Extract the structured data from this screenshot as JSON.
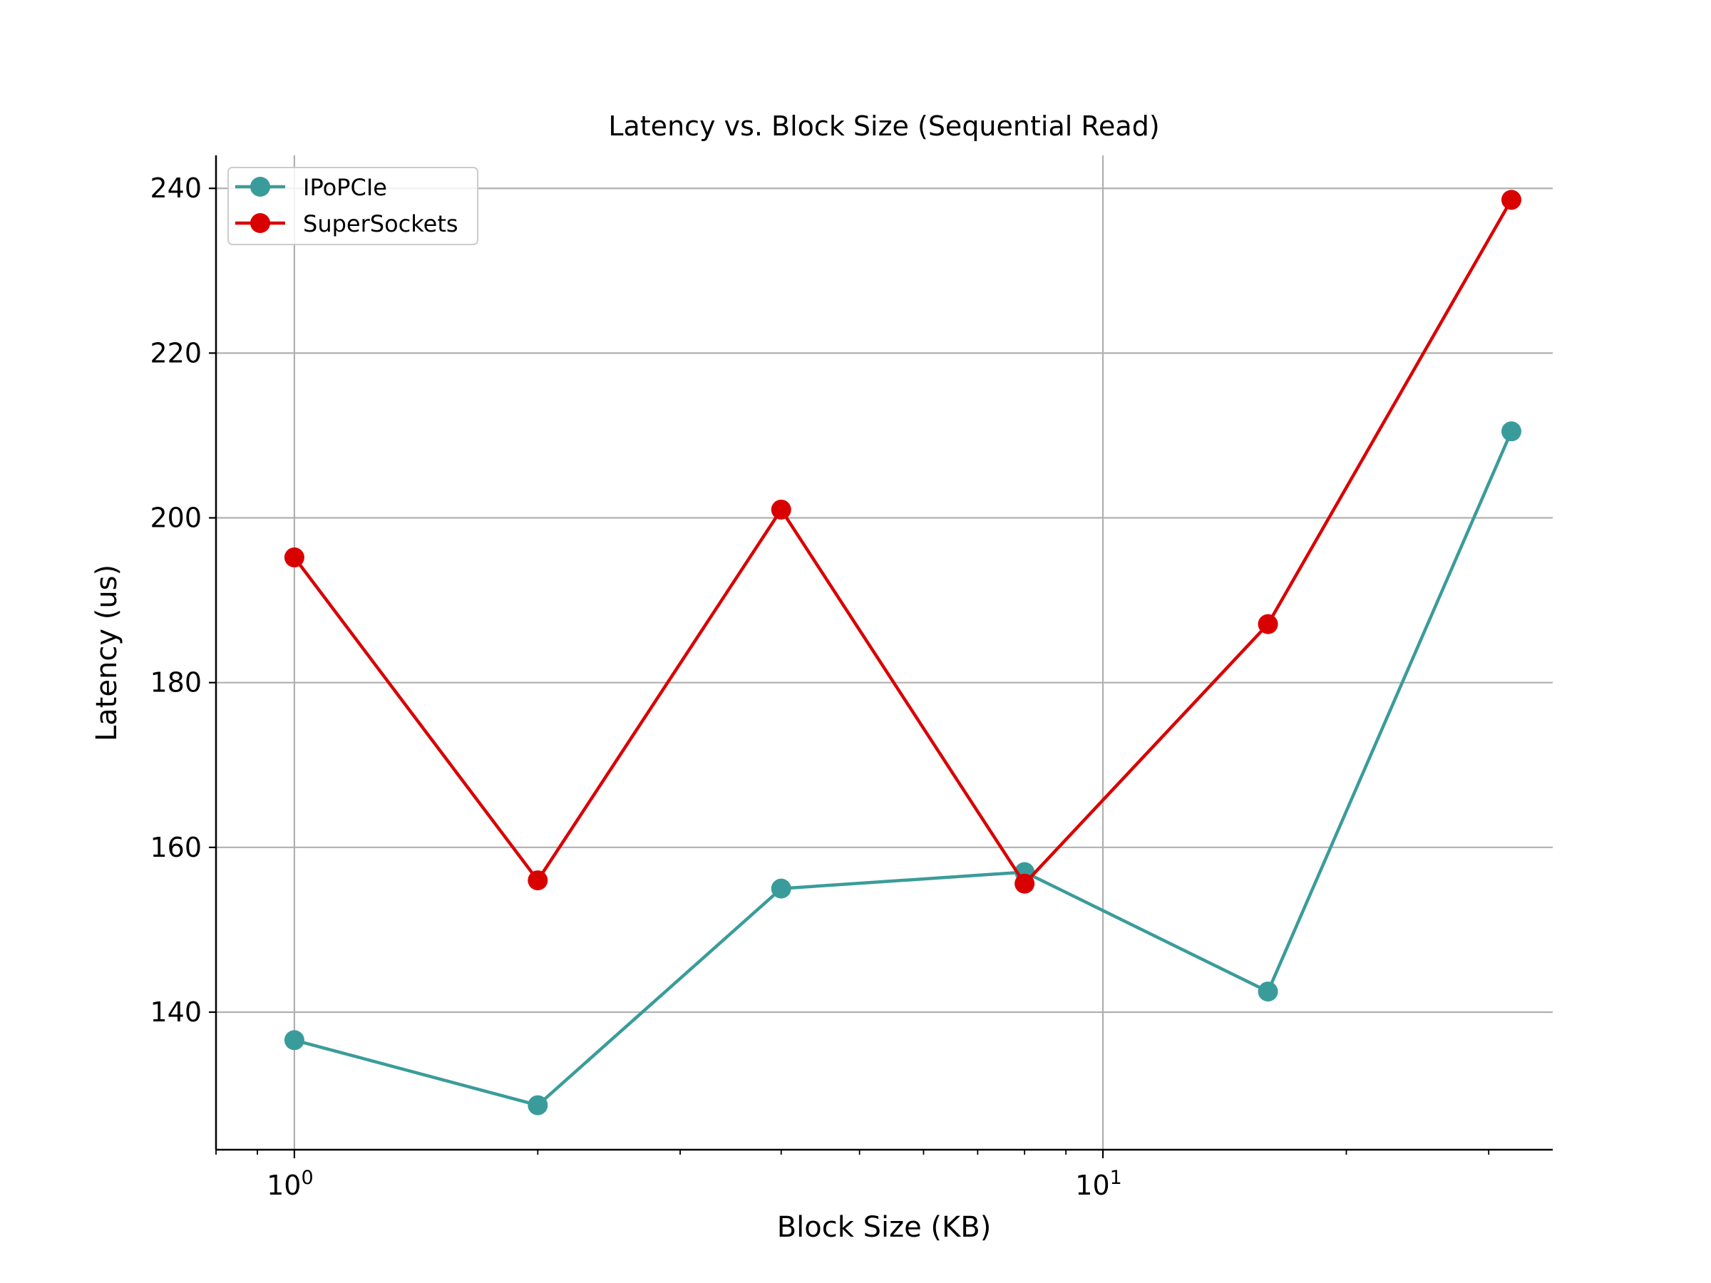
{
  "chart_data": {
    "type": "line",
    "title": "Latency vs. Block Size (Sequential Read)",
    "xlabel": "Block Size (KB)",
    "ylabel": "Latency (us)",
    "x_scale": "log",
    "xlim": [
      0.8,
      36
    ],
    "ylim": [
      123.3,
      244.0
    ],
    "x": [
      1,
      2,
      4,
      8,
      16,
      32
    ],
    "x_tick_labels": [
      {
        "base": "10",
        "exp": "0",
        "value": 1
      },
      {
        "base": "10",
        "exp": "1",
        "value": 10
      }
    ],
    "y_ticks": [
      140,
      160,
      180,
      200,
      220,
      240
    ],
    "grid": true,
    "legend_position": "top-left",
    "series": [
      {
        "name": "IPoPCIe",
        "color": "#3a9c9a",
        "values": [
          136.6,
          128.7,
          155.0,
          157.0,
          142.5,
          210.5
        ]
      },
      {
        "name": "SuperSockets",
        "color": "#d90000",
        "values": [
          195.2,
          156.0,
          201.0,
          155.6,
          187.1,
          238.6
        ]
      }
    ]
  }
}
